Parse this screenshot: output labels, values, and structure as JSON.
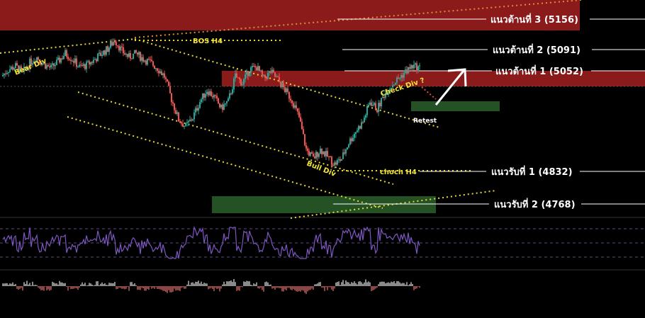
{
  "chart_data": {
    "type": "candlestick",
    "series": [
      {
        "name": "",
        "values": [
          5040,
          5055,
          5062,
          5048,
          5070,
          5082,
          5066,
          5058,
          5072,
          5090,
          5078,
          5060,
          5064,
          5075,
          5088,
          5100,
          5120,
          5095,
          5082,
          5090,
          5078,
          5070,
          5058,
          5040,
          4990,
          4945,
          4930,
          4950,
          4985,
          5010,
          4995,
          4970,
          4985,
          5040,
          5025,
          5055,
          5060,
          5035,
          5050,
          5032,
          5010,
          4988,
          4950,
          4880,
          4860,
          4880,
          4865,
          4848,
          4860,
          4895,
          4920,
          4940,
          4985,
          4968,
          5000,
          5020,
          5035,
          5050,
          5062,
          5058
        ]
      }
    ],
    "levels": [
      {
        "label": "แนวต้านที่  3 (5156)",
        "value": 5156,
        "role": "resistance"
      },
      {
        "label": "แนวต้านที่  2 (5091)",
        "value": 5091,
        "role": "resistance"
      },
      {
        "label": "แนวต้านที่ 1 (5052)",
        "value": 5052,
        "role": "resistance"
      },
      {
        "label": "แนวรับที่ 1 (4832)",
        "value": 4832,
        "role": "support"
      },
      {
        "label": "แนวรับที่ 2 (4768)",
        "value": 4768,
        "role": "support"
      }
    ],
    "annotations": [
      {
        "text": "Bear Div",
        "color": "yellow"
      },
      {
        "text": "BOS H4",
        "color": "yellow"
      },
      {
        "text": "Check Div ?",
        "color": "yellow"
      },
      {
        "text": "Retest",
        "color": "white"
      },
      {
        "text": "Bull Div",
        "color": "yellow"
      },
      {
        "text": "choch H4",
        "color": "yellow"
      }
    ],
    "indicators": [
      "rsi",
      "histogram"
    ],
    "colors": {
      "up": "#26a69a",
      "down": "#ef5350",
      "resistance_zone": "#8b1a1a",
      "support_zone": "#245224",
      "trendline": "#e6d83a",
      "rsi": "#7e57c2"
    }
  }
}
